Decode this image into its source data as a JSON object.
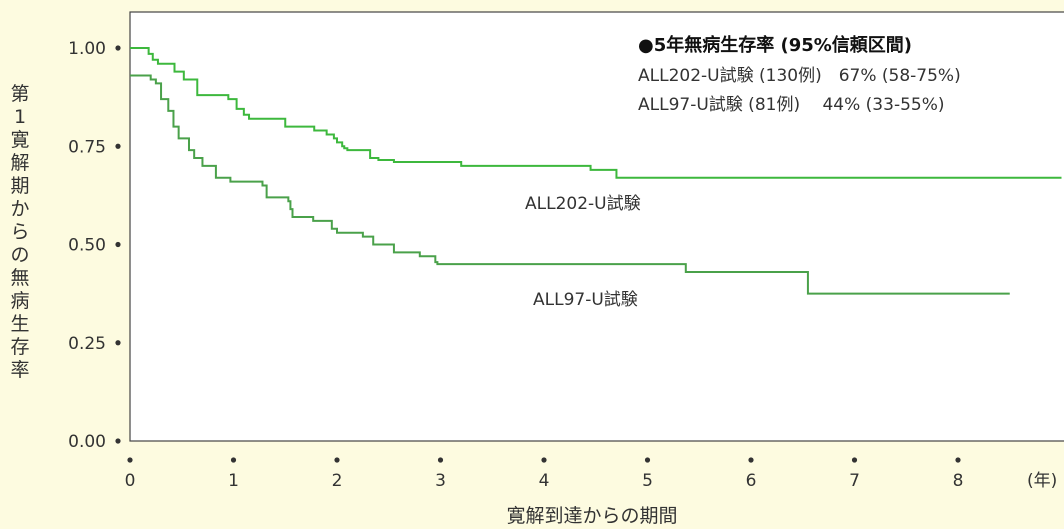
{
  "chart_data": {
    "type": "line",
    "subtype": "step",
    "ylabel": "第1寛解期からの無病生存率",
    "xlabel": "寛解到達からの期間",
    "x_unit": "(年)",
    "xlim": [
      0,
      9
    ],
    "ylim": [
      0,
      1
    ],
    "x_ticks": [
      "0",
      "1",
      "2",
      "3",
      "4",
      "5",
      "6",
      "7",
      "8"
    ],
    "y_ticks": [
      "0.00",
      "0.25",
      "0.50",
      "0.75",
      "1.00"
    ],
    "grid": false,
    "legend": {
      "placement": "top-right",
      "title": "●5年無病生存率 (95%信頼区間)",
      "entries": [
        "ALL202-U試験 (130例)　67% (58-75%)",
        "ALL97-U試験 (81例)　 44% (33-55%)"
      ]
    },
    "series": [
      {
        "name": "ALL202-U試験",
        "color": "#3db83d",
        "points": [
          [
            0,
            1.0
          ],
          [
            0.18,
            0.985
          ],
          [
            0.22,
            0.97
          ],
          [
            0.27,
            0.96
          ],
          [
            0.43,
            0.94
          ],
          [
            0.52,
            0.92
          ],
          [
            0.65,
            0.88
          ],
          [
            0.95,
            0.87
          ],
          [
            1.03,
            0.845
          ],
          [
            1.1,
            0.83
          ],
          [
            1.15,
            0.82
          ],
          [
            1.5,
            0.8
          ],
          [
            1.78,
            0.79
          ],
          [
            1.9,
            0.78
          ],
          [
            1.97,
            0.77
          ],
          [
            2.0,
            0.76
          ],
          [
            2.05,
            0.75
          ],
          [
            2.07,
            0.745
          ],
          [
            2.1,
            0.74
          ],
          [
            2.32,
            0.72
          ],
          [
            2.4,
            0.715
          ],
          [
            2.55,
            0.71
          ],
          [
            3.2,
            0.7
          ],
          [
            4.45,
            0.69
          ],
          [
            4.7,
            0.67
          ],
          [
            9.0,
            0.67
          ]
        ]
      },
      {
        "name": "ALL97-U試験",
        "color": "#4aa14a",
        "points": [
          [
            0,
            0.93
          ],
          [
            0.2,
            0.92
          ],
          [
            0.25,
            0.91
          ],
          [
            0.3,
            0.87
          ],
          [
            0.37,
            0.84
          ],
          [
            0.42,
            0.8
          ],
          [
            0.47,
            0.77
          ],
          [
            0.57,
            0.74
          ],
          [
            0.62,
            0.72
          ],
          [
            0.7,
            0.7
          ],
          [
            0.83,
            0.67
          ],
          [
            0.97,
            0.66
          ],
          [
            1.28,
            0.65
          ],
          [
            1.32,
            0.62
          ],
          [
            1.53,
            0.61
          ],
          [
            1.55,
            0.59
          ],
          [
            1.57,
            0.57
          ],
          [
            1.77,
            0.56
          ],
          [
            1.95,
            0.54
          ],
          [
            2.0,
            0.53
          ],
          [
            2.25,
            0.52
          ],
          [
            2.35,
            0.5
          ],
          [
            2.55,
            0.48
          ],
          [
            2.8,
            0.47
          ],
          [
            2.95,
            0.455
          ],
          [
            2.97,
            0.45
          ],
          [
            5.37,
            0.43
          ],
          [
            6.55,
            0.375
          ],
          [
            8.5,
            0.375
          ]
        ]
      }
    ],
    "series_labels": [
      "ALL202-U試験",
      "ALL97-U試験"
    ]
  }
}
